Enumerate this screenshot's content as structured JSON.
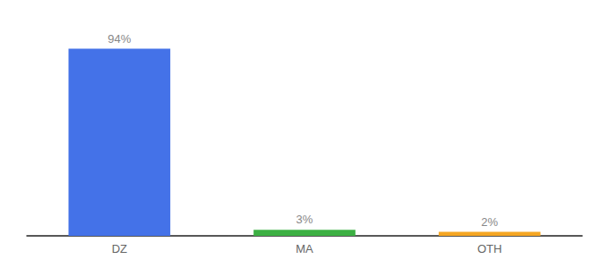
{
  "chart_data": {
    "type": "bar",
    "categories": [
      "DZ",
      "MA",
      "OTH"
    ],
    "values": [
      94,
      3,
      2
    ],
    "value_labels": [
      "94%",
      "3%",
      "2%"
    ],
    "colors": [
      "#4472e8",
      "#3cb043",
      "#f5a623"
    ],
    "ylim": [
      0,
      105
    ],
    "data_labels": true,
    "tick_labels": "x",
    "grid": false
  }
}
